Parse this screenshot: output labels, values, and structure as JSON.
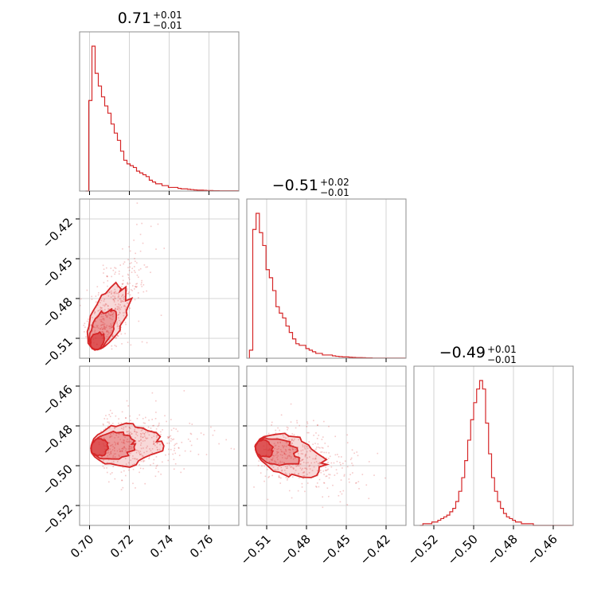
{
  "chart_data": {
    "type": "corner",
    "color": "#d62728",
    "parameters": [
      {
        "title": {
          "value": "0.71",
          "plus": "+0.01",
          "minus": "−0.01"
        },
        "range": [
          0.695,
          0.775
        ],
        "ticks": [
          0.7,
          0.72,
          0.74,
          0.76
        ],
        "tick_labels": [
          "0.70",
          "0.72",
          "0.74",
          "0.76"
        ]
      },
      {
        "title": {
          "value": "−0.51",
          "plus": "+0.02",
          "minus": "−0.01"
        },
        "range": [
          -0.525,
          -0.405
        ],
        "ticks": [
          -0.51,
          -0.48,
          -0.45,
          -0.42
        ],
        "tick_labels": [
          "−0.51",
          "−0.48",
          "−0.45",
          "−0.42"
        ]
      },
      {
        "title": {
          "value": "−0.49",
          "plus": "+0.01",
          "minus": "−0.01"
        },
        "range": [
          -0.53,
          -0.45
        ],
        "ticks": [
          -0.52,
          -0.5,
          -0.48,
          -0.46
        ],
        "tick_labels": [
          "−0.52",
          "−0.50",
          "−0.48",
          "−0.46"
        ]
      }
    ],
    "histograms": [
      {
        "param": 0,
        "bin_start": 0.698,
        "bin_width": 0.0016,
        "counts": [
          0,
          0.5,
          0.8,
          0.65,
          0.58,
          0.52,
          0.47,
          0.43,
          0.37,
          0.32,
          0.28,
          0.22,
          0.17,
          0.15,
          0.14,
          0.13,
          0.11,
          0.1,
          0.09,
          0.08,
          0.06,
          0.05,
          0.04,
          0.04,
          0.03,
          0.03,
          0.02,
          0.02,
          0.02,
          0.015,
          0.012,
          0.012,
          0.01,
          0.008,
          0.006,
          0.005,
          0.005,
          0.004,
          0.003,
          0.003,
          0.002,
          0.002,
          0.001,
          0.001,
          0.001,
          0.001,
          0.001,
          0.001
        ]
      },
      {
        "param": 1,
        "bin_start": -0.523,
        "bin_width": 0.0025,
        "counts": [
          0.05,
          0.8,
          0.9,
          0.78,
          0.7,
          0.55,
          0.5,
          0.42,
          0.32,
          0.28,
          0.25,
          0.2,
          0.16,
          0.12,
          0.09,
          0.08,
          0.08,
          0.06,
          0.05,
          0.04,
          0.03,
          0.03,
          0.02,
          0.02,
          0.02,
          0.015,
          0.012,
          0.01,
          0.008,
          0.008,
          0.006,
          0.005,
          0.004,
          0.004,
          0.003,
          0.002,
          0.002,
          0.001,
          0.001,
          0.001,
          0.001,
          0.001,
          0.001,
          0.001,
          0.001,
          0.001,
          0.001
        ]
      },
      {
        "param": 2,
        "bin_start": -0.527,
        "bin_width": 0.0015,
        "counts": [
          0.0,
          0.01,
          0.01,
          0.01,
          0.02,
          0.02,
          0.03,
          0.04,
          0.05,
          0.06,
          0.08,
          0.1,
          0.14,
          0.2,
          0.28,
          0.38,
          0.5,
          0.62,
          0.72,
          0.8,
          0.85,
          0.8,
          0.6,
          0.42,
          0.28,
          0.2,
          0.14,
          0.1,
          0.07,
          0.05,
          0.04,
          0.03,
          0.02,
          0.02,
          0.01,
          0.01,
          0.01,
          0.01,
          0.0,
          0.0,
          0.0,
          0.0,
          0.0,
          0.0,
          0.0,
          0.0,
          0.0,
          0.0,
          0.0,
          0.0,
          0.0,
          0.0,
          0.0
        ]
      }
    ],
    "pairs": [
      {
        "x": 0,
        "y": 1,
        "center": [
          0.703,
          -0.515
        ],
        "direction": [
          1,
          2.2
        ]
      },
      {
        "x": 0,
        "y": 2,
        "center": [
          0.703,
          -0.491
        ],
        "direction": [
          1,
          0.1
        ]
      },
      {
        "x": 1,
        "y": 2,
        "center": [
          -0.515,
          -0.491
        ],
        "direction": [
          1,
          -0.25
        ]
      }
    ]
  }
}
